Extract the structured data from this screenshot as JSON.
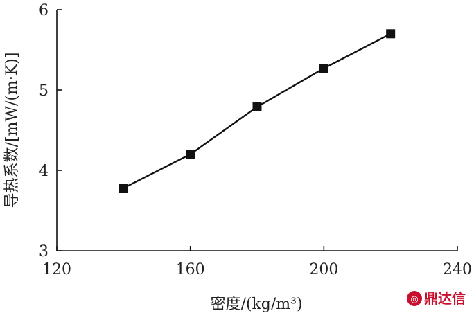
{
  "chart_data": {
    "type": "line",
    "xlabel": "密度/(kg/m³)",
    "ylabel": "导热系数/[mW/(m·K)]",
    "xlim": [
      120,
      240
    ],
    "ylim": [
      3,
      6
    ],
    "xticks": [
      120,
      160,
      200,
      240
    ],
    "yticks": [
      3,
      4,
      5,
      6
    ],
    "grid": false,
    "series": [
      {
        "x": [
          140,
          160,
          180,
          200,
          220
        ],
        "values": [
          3.78,
          4.2,
          4.79,
          5.27,
          5.7
        ]
      }
    ]
  },
  "watermark": {
    "text": "鼎达信",
    "color": "#c8102e"
  }
}
